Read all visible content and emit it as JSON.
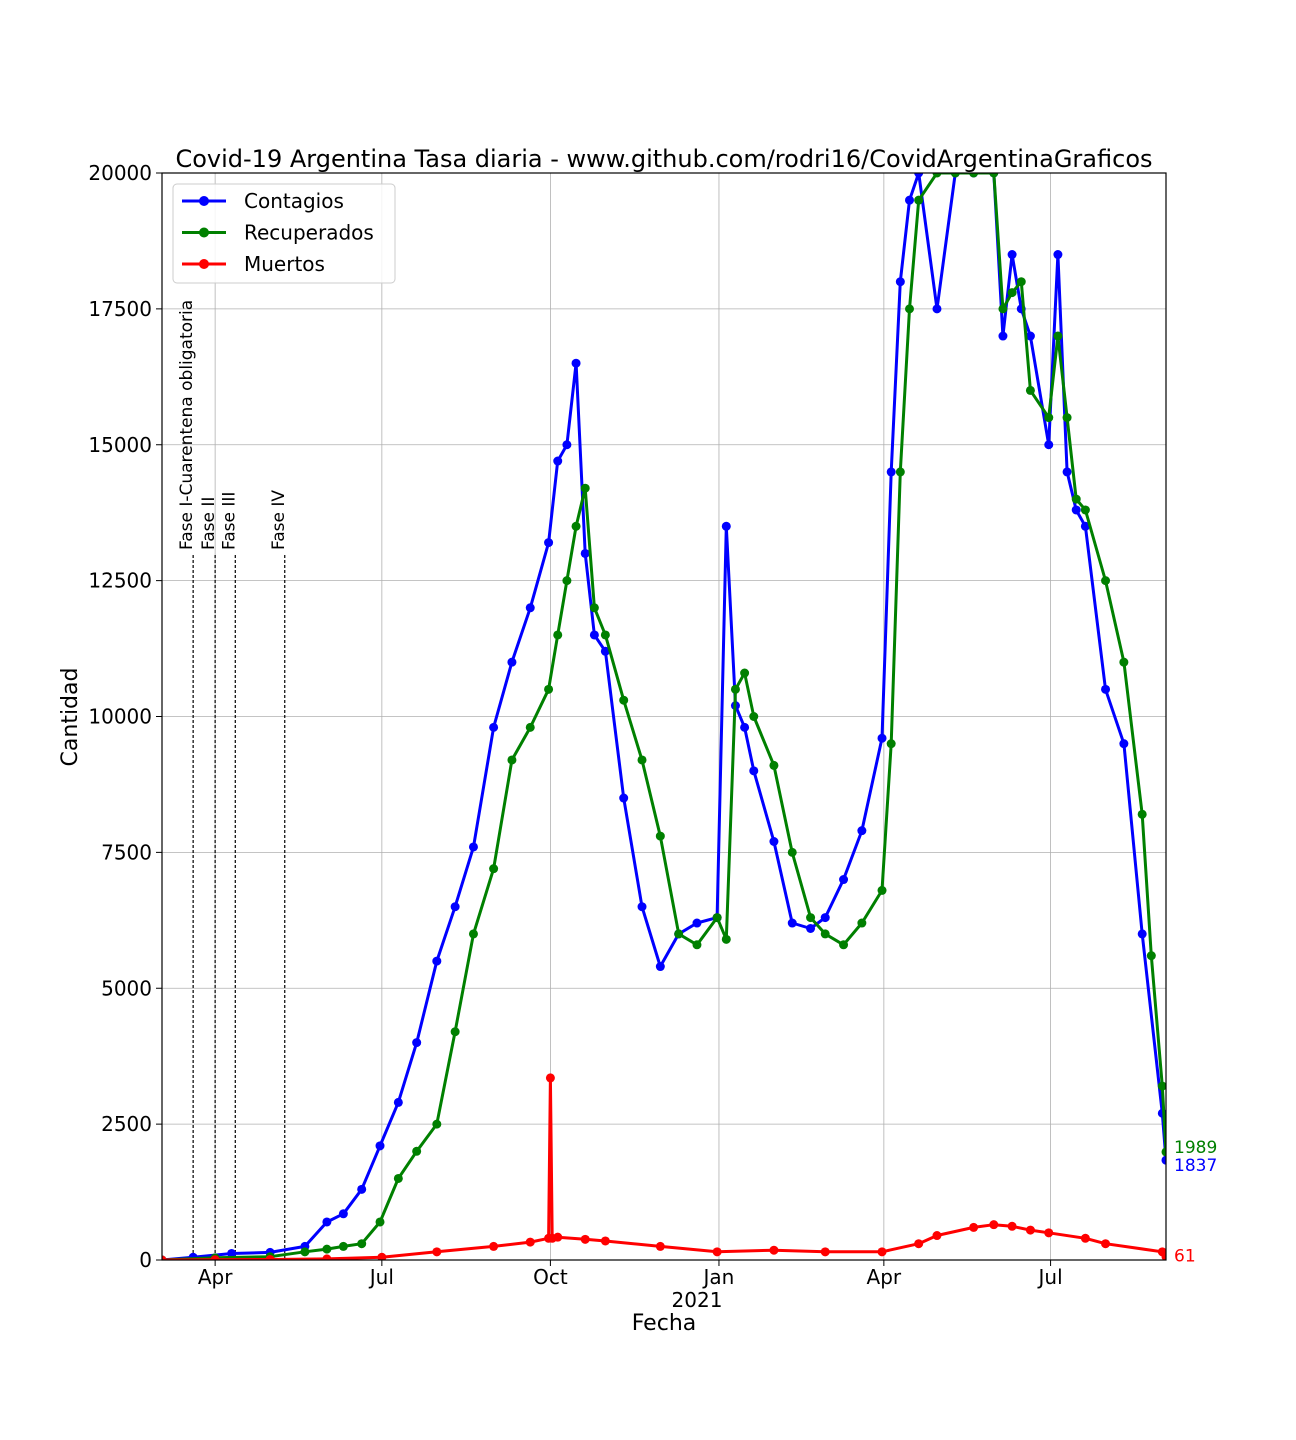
{
  "chart_data": {
    "type": "line",
    "title": "Covid-19 Argentina Tasa diaria - www.github.com/rodri16/CovidArgentinaGraficos",
    "xlabel": "Fecha",
    "ylabel": "Cantidad",
    "ylim": [
      0,
      20000
    ],
    "xlim": [
      "2020-03-03",
      "2021-09-02"
    ],
    "grid": true,
    "legend_position": "top-left",
    "x_ticks": [
      {
        "date": "2020-04-01",
        "label": "Apr"
      },
      {
        "date": "2020-07-01",
        "label": "Jul"
      },
      {
        "date": "2020-10-01",
        "label": "Oct"
      },
      {
        "date": "2021-01-01",
        "label": "Jan"
      },
      {
        "date": "2021-04-01",
        "label": "Apr"
      },
      {
        "date": "2021-07-01",
        "label": "Jul"
      }
    ],
    "year_label": "2021",
    "y_ticks": [
      0,
      2500,
      5000,
      7500,
      10000,
      12500,
      15000,
      17500,
      20000
    ],
    "phases": [
      {
        "date": "2020-03-20",
        "label": "Fase I-Cuarentena obligatoria"
      },
      {
        "date": "2020-04-01",
        "label": "Fase II"
      },
      {
        "date": "2020-04-12",
        "label": "Fase III"
      },
      {
        "date": "2020-05-09",
        "label": "Fase IV"
      }
    ],
    "series": [
      {
        "name": "Contagios",
        "color": "#0000ff",
        "x": [
          "2020-03-03",
          "2020-03-20",
          "2020-04-10",
          "2020-05-01",
          "2020-05-20",
          "2020-06-01",
          "2020-06-10",
          "2020-06-20",
          "2020-06-30",
          "2020-07-10",
          "2020-07-20",
          "2020-07-31",
          "2020-08-10",
          "2020-08-20",
          "2020-08-31",
          "2020-09-10",
          "2020-09-20",
          "2020-09-30",
          "2020-10-05",
          "2020-10-10",
          "2020-10-15",
          "2020-10-20",
          "2020-10-25",
          "2020-10-31",
          "2020-11-10",
          "2020-11-20",
          "2020-11-30",
          "2020-12-10",
          "2020-12-20",
          "2020-12-31",
          "2021-01-05",
          "2021-01-10",
          "2021-01-15",
          "2021-01-20",
          "2021-01-31",
          "2021-02-10",
          "2021-02-20",
          "2021-02-28",
          "2021-03-10",
          "2021-03-20",
          "2021-03-31",
          "2021-04-05",
          "2021-04-10",
          "2021-04-15",
          "2021-04-20",
          "2021-04-30",
          "2021-05-10",
          "2021-05-20",
          "2021-05-31",
          "2021-06-05",
          "2021-06-10",
          "2021-06-15",
          "2021-06-20",
          "2021-06-30",
          "2021-07-05",
          "2021-07-10",
          "2021-07-15",
          "2021-07-20",
          "2021-07-31",
          "2021-08-10",
          "2021-08-20",
          "2021-08-31",
          "2021-09-02"
        ],
        "y": [
          0,
          50,
          120,
          140,
          250,
          700,
          850,
          1300,
          2100,
          2900,
          4000,
          5500,
          6500,
          7600,
          9800,
          11000,
          12000,
          13200,
          14700,
          15000,
          16500,
          13000,
          11500,
          11200,
          8500,
          6500,
          5400,
          6000,
          6200,
          6300,
          13500,
          10200,
          9800,
          9000,
          7700,
          6200,
          6100,
          6300,
          7000,
          7900,
          9600,
          14500,
          18000,
          19500,
          20000,
          17500,
          20000,
          20000,
          20000,
          17000,
          18500,
          17500,
          17000,
          15000,
          18500,
          14500,
          13800,
          13500,
          10500,
          9500,
          6000,
          2700,
          1837
        ]
      },
      {
        "name": "Recuperados",
        "color": "#008000",
        "x": [
          "2020-03-03",
          "2020-04-01",
          "2020-05-01",
          "2020-05-20",
          "2020-06-01",
          "2020-06-10",
          "2020-06-20",
          "2020-06-30",
          "2020-07-10",
          "2020-07-20",
          "2020-07-31",
          "2020-08-10",
          "2020-08-20",
          "2020-08-31",
          "2020-09-10",
          "2020-09-20",
          "2020-09-30",
          "2020-10-05",
          "2020-10-10",
          "2020-10-15",
          "2020-10-20",
          "2020-10-25",
          "2020-10-31",
          "2020-11-10",
          "2020-11-20",
          "2020-11-30",
          "2020-12-10",
          "2020-12-20",
          "2020-12-31",
          "2021-01-05",
          "2021-01-10",
          "2021-01-15",
          "2021-01-20",
          "2021-01-31",
          "2021-02-10",
          "2021-02-20",
          "2021-02-28",
          "2021-03-10",
          "2021-03-20",
          "2021-03-31",
          "2021-04-05",
          "2021-04-10",
          "2021-04-15",
          "2021-04-20",
          "2021-04-30",
          "2021-05-10",
          "2021-05-20",
          "2021-05-31",
          "2021-06-05",
          "2021-06-10",
          "2021-06-15",
          "2021-06-20",
          "2021-06-30",
          "2021-07-05",
          "2021-07-10",
          "2021-07-15",
          "2021-07-20",
          "2021-07-31",
          "2021-08-10",
          "2021-08-20",
          "2021-08-25",
          "2021-08-31",
          "2021-09-02"
        ],
        "y": [
          0,
          40,
          60,
          150,
          200,
          250,
          300,
          700,
          1500,
          2000,
          2500,
          4200,
          6000,
          7200,
          9200,
          9800,
          10500,
          11500,
          12500,
          13500,
          14200,
          12000,
          11500,
          10300,
          9200,
          7800,
          6000,
          5800,
          6300,
          5900,
          10500,
          10800,
          10000,
          9100,
          7500,
          6300,
          6000,
          5800,
          6200,
          6800,
          9500,
          14500,
          17500,
          19500,
          20000,
          20000,
          20000,
          20000,
          17500,
          17800,
          18000,
          16000,
          15500,
          17000,
          15500,
          14000,
          13800,
          12500,
          11000,
          8200,
          5600,
          3200,
          1989
        ]
      },
      {
        "name": "Muertos",
        "color": "#ff0000",
        "x": [
          "2020-03-03",
          "2020-04-01",
          "2020-05-01",
          "2020-06-01",
          "2020-07-01",
          "2020-07-31",
          "2020-08-31",
          "2020-09-20",
          "2020-09-30",
          "2020-10-01",
          "2020-10-02",
          "2020-10-05",
          "2020-10-20",
          "2020-10-31",
          "2020-11-30",
          "2020-12-31",
          "2021-01-31",
          "2021-02-28",
          "2021-03-31",
          "2021-04-20",
          "2021-04-30",
          "2021-05-20",
          "2021-05-31",
          "2021-06-10",
          "2021-06-20",
          "2021-06-30",
          "2021-07-20",
          "2021-07-31",
          "2021-08-31",
          "2021-09-02"
        ],
        "y": [
          0,
          5,
          10,
          20,
          50,
          150,
          250,
          330,
          400,
          3350,
          400,
          420,
          380,
          350,
          250,
          150,
          180,
          150,
          150,
          300,
          450,
          600,
          650,
          620,
          550,
          500,
          400,
          300,
          150,
          61
        ]
      }
    ],
    "end_labels": [
      {
        "series": "Recuperados",
        "text": "1989"
      },
      {
        "series": "Contagios",
        "text": "1837"
      },
      {
        "series": "Muertos",
        "text": "61"
      }
    ]
  }
}
